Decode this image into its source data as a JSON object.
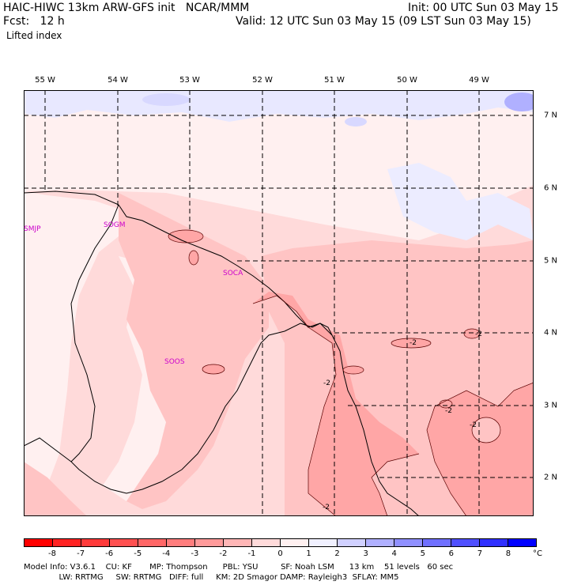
{
  "header": {
    "title_left": "HAIC-HIWC 13km ARW-GFS init   NCAR/MMM",
    "init": "Init: 00 UTC Sun 03 May 15",
    "fcst": "Fcst:   12 h",
    "valid": "Valid: 12 UTC Sun 03 May 15 (09 LST Sun 03 May 15)",
    "field": "Lifted index"
  },
  "map": {
    "longitudes": [
      "55 W",
      "54 W",
      "53 W",
      "52 W",
      "51 W",
      "50 W",
      "49 W"
    ],
    "latitudes": [
      "7 N",
      "6 N",
      "5 N",
      "4 N",
      "3 N",
      "2 N"
    ],
    "stations": [
      "SMJP",
      "SOGM",
      "SOCA",
      "SOOS"
    ],
    "contour_labels": [
      "-2",
      "-2",
      "-2",
      "-2",
      "-2",
      "-2"
    ]
  },
  "colorbar": {
    "ticks": [
      "-8",
      "-7",
      "-6",
      "-5",
      "-4",
      "-3",
      "-2",
      "-1",
      "0",
      "1",
      "2",
      "3",
      "4",
      "5",
      "6",
      "7",
      "8"
    ],
    "unit": "°C",
    "colors": [
      "#ff0000",
      "#ff2222",
      "#ff3a3a",
      "#ff5050",
      "#ff6666",
      "#ff7d7d",
      "#ff9a9a",
      "#ffb6b6",
      "#ffdada",
      "#fff0f0",
      "#f0f0ff",
      "#d0d0ff",
      "#b0b0ff",
      "#9090ff",
      "#7070ff",
      "#5050ff",
      "#3030ff",
      "#0000ff"
    ]
  },
  "footer": {
    "line1": "Model Info: V3.6.1    CU: KF       MP: Thompson      PBL: YSU         SF: Noah LSM      13 km    51 levels   60 sec",
    "line2": "              LW: RRTMG     SW: RRTMG   DIFF: full     KM: 2D Smagor DAMP: Rayleigh3  SFLAY: MM5"
  }
}
